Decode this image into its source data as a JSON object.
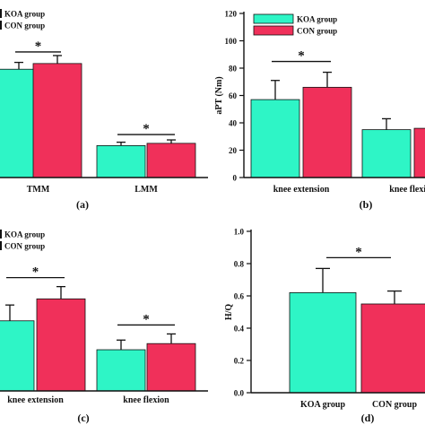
{
  "colors": {
    "koa": "#2ef5c6",
    "con": "#f0305a"
  },
  "chart_data": [
    {
      "type": "bar",
      "panel_label": "(a)",
      "categories": [
        "TMM",
        "LMM"
      ],
      "series": [
        {
          "name": "KOA group",
          "values": [
            95,
            28
          ],
          "errors": [
            6,
            3
          ]
        },
        {
          "name": "CON group",
          "values": [
            100,
            30
          ],
          "errors": [
            7,
            3
          ]
        }
      ],
      "ylim": [
        0,
        140
      ],
      "significance": [
        {
          "category_index": 0,
          "label": "*"
        },
        {
          "category_index": 1,
          "label": "*"
        }
      ],
      "legend": {
        "position": "top-left",
        "entries": [
          "KOA group",
          "CON group"
        ]
      }
    },
    {
      "type": "bar",
      "panel_label": "(b)",
      "ylabel": "aPT (Nm)",
      "categories": [
        "knee extension",
        "knee flexion"
      ],
      "series": [
        {
          "name": "KOA group",
          "values": [
            57,
            35
          ],
          "errors": [
            14,
            8
          ]
        },
        {
          "name": "CON group",
          "values": [
            66,
            36
          ],
          "errors": [
            11,
            5
          ]
        }
      ],
      "ylim": [
        0,
        120
      ],
      "yticks": [
        0,
        20,
        40,
        60,
        80,
        100,
        120
      ],
      "significance": [
        {
          "category_index": 0,
          "label": "*"
        }
      ],
      "legend": {
        "position": "top-left",
        "entries": [
          "KOA group",
          "CON group"
        ]
      }
    },
    {
      "type": "bar",
      "panel_label": "(c)",
      "categories": [
        "knee extension",
        "knee flexion"
      ],
      "series": [
        {
          "name": "KOA group",
          "values": [
            80,
            47
          ],
          "errors": [
            18,
            11
          ]
        },
        {
          "name": "CON group",
          "values": [
            105,
            54
          ],
          "errors": [
            14,
            11
          ]
        }
      ],
      "ylim": [
        0,
        180
      ],
      "significance": [
        {
          "category_index": 0,
          "label": "*"
        },
        {
          "category_index": 1,
          "label": "*"
        }
      ],
      "legend": {
        "position": "top-left",
        "entries": [
          "KOA group",
          "CON group"
        ]
      }
    },
    {
      "type": "bar",
      "panel_label": "(d)",
      "ylabel": "H/Q",
      "categories": [
        "KOA group",
        "CON group"
      ],
      "series": [
        {
          "name": "KOA group",
          "values": [
            0.62,
            null
          ],
          "errors": [
            0.15,
            null
          ]
        },
        {
          "name": "CON group",
          "values": [
            null,
            0.55
          ],
          "errors": [
            null,
            0.08
          ]
        }
      ],
      "ylim": [
        0,
        1.0
      ],
      "yticks": [
        0.0,
        0.2,
        0.4,
        0.6,
        0.8,
        1.0
      ],
      "significance": [
        {
          "between_categories": [
            0,
            1
          ],
          "label": "*"
        }
      ]
    }
  ]
}
